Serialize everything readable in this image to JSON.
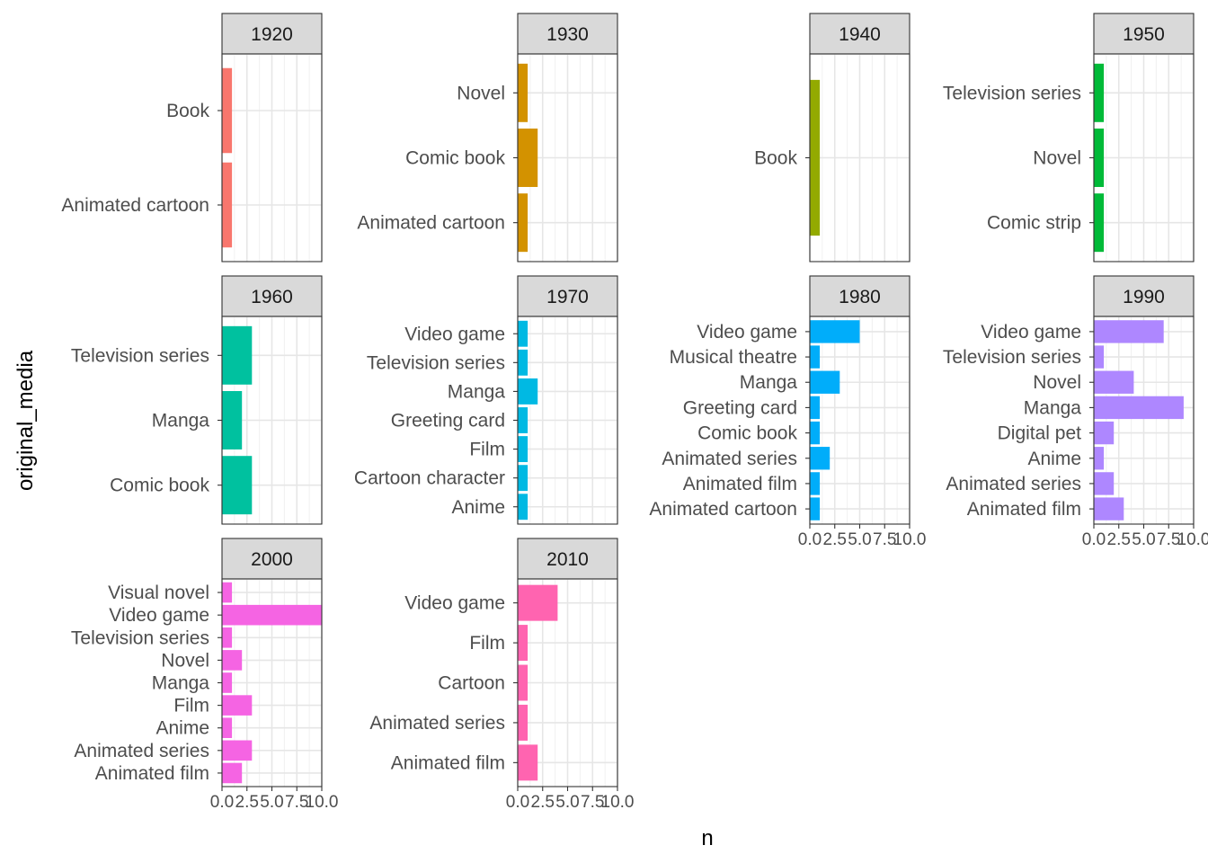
{
  "chart_data": {
    "type": "bar",
    "orientation": "horizontal",
    "xlabel": "n",
    "ylabel": "original_media",
    "xlim": [
      0,
      10
    ],
    "x_ticks": [
      "0.0",
      "2.5",
      "5.0",
      "7.5",
      "10.0"
    ],
    "grid": true,
    "legend": "none",
    "panels": [
      {
        "label": "1920",
        "color": "#F8766D",
        "categories": [
          "Book",
          "Animated cartoon"
        ],
        "values": [
          1,
          1
        ]
      },
      {
        "label": "1930",
        "color": "#D39200",
        "categories": [
          "Novel",
          "Comic book",
          "Animated cartoon"
        ],
        "values": [
          1,
          2,
          1
        ]
      },
      {
        "label": "1940",
        "color": "#93AA00",
        "categories": [
          "Book"
        ],
        "values": [
          1
        ]
      },
      {
        "label": "1950",
        "color": "#00BA38",
        "categories": [
          "Television series",
          "Novel",
          "Comic strip"
        ],
        "values": [
          1,
          1,
          1
        ]
      },
      {
        "label": "1960",
        "color": "#00C19F",
        "categories": [
          "Television series",
          "Manga",
          "Comic book"
        ],
        "values": [
          3,
          2,
          3
        ]
      },
      {
        "label": "1970",
        "color": "#00B9E3",
        "categories": [
          "Video game",
          "Television series",
          "Manga",
          "Greeting card",
          "Film",
          "Cartoon character",
          "Anime"
        ],
        "values": [
          1,
          1,
          2,
          1,
          1,
          1,
          1
        ]
      },
      {
        "label": "1980",
        "color": "#00ADFA",
        "categories": [
          "Video game",
          "Musical theatre",
          "Manga",
          "Greeting card",
          "Comic book",
          "Animated series",
          "Animated film",
          "Animated cartoon"
        ],
        "values": [
          5,
          1,
          3,
          1,
          1,
          2,
          1,
          1
        ]
      },
      {
        "label": "1990",
        "color": "#AE87FF",
        "categories": [
          "Video game",
          "Television series",
          "Novel",
          "Manga",
          "Digital pet",
          "Anime",
          "Animated series",
          "Animated film"
        ],
        "values": [
          7,
          1,
          4,
          9,
          2,
          1,
          2,
          3
        ]
      },
      {
        "label": "2000",
        "color": "#F564E3",
        "categories": [
          "Visual novel",
          "Video game",
          "Television series",
          "Novel",
          "Manga",
          "Film",
          "Anime",
          "Animated series",
          "Animated film"
        ],
        "values": [
          1,
          10,
          1,
          2,
          1,
          3,
          1,
          3,
          2
        ]
      },
      {
        "label": "2010",
        "color": "#FF64B0",
        "categories": [
          "Video game",
          "Film",
          "Cartoon",
          "Animated series",
          "Animated film"
        ],
        "values": [
          4,
          1,
          1,
          1,
          2
        ]
      }
    ]
  }
}
